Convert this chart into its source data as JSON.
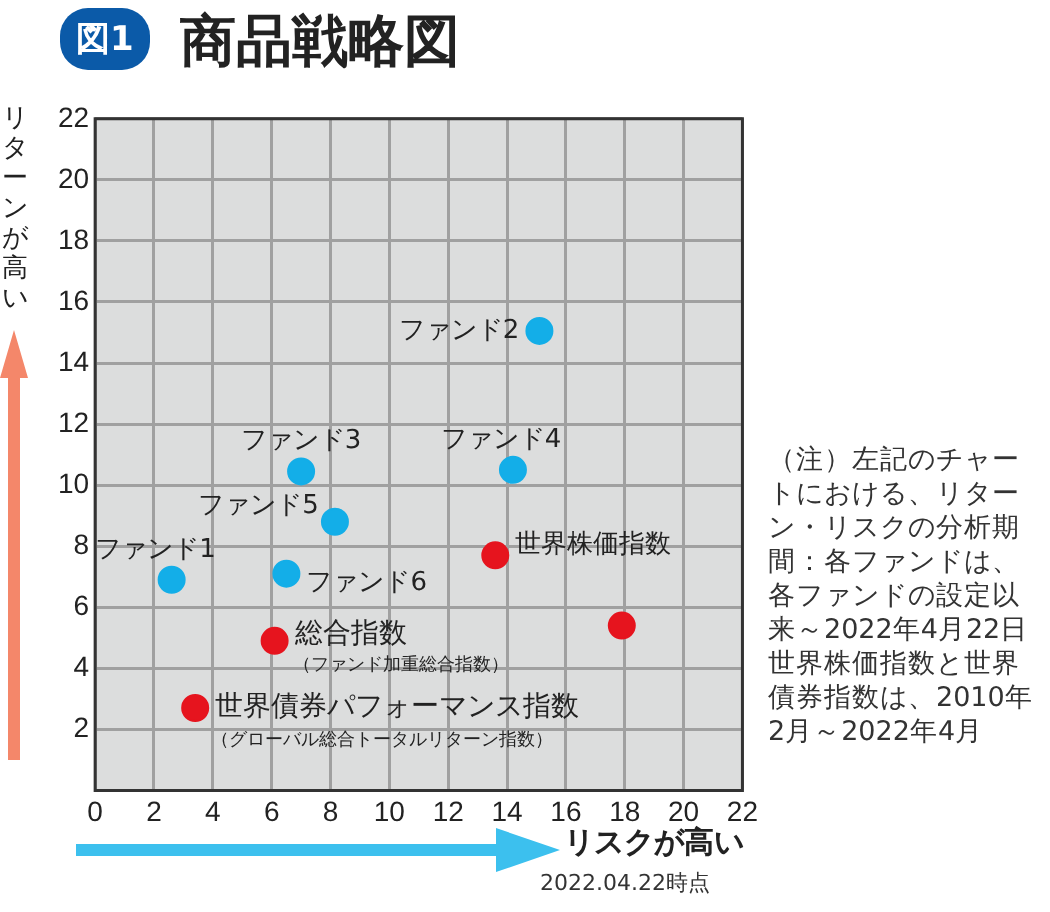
{
  "chart_data": {
    "type": "scatter",
    "title": "商品戦略図",
    "xlabel": "リスクが高い",
    "ylabel": "リターンが高い",
    "series": [
      {
        "color": "#13aee8",
        "x": [
          2.6,
          15.1,
          7.0,
          14.2,
          8.15,
          6.5
        ],
        "values": [
          6.9,
          15.05,
          10.45,
          10.5,
          8.8,
          7.1
        ]
      },
      {
        "color": "#e6141e",
        "x": [
          13.6,
          17.9,
          6.1,
          3.4
        ],
        "values": [
          7.7,
          5.4,
          4.9,
          2.7
        ]
      }
    ],
    "xlim": [
      0,
      22
    ],
    "xticks": [
      0,
      2,
      4,
      6,
      8,
      10,
      12,
      14,
      16,
      18,
      20,
      22
    ],
    "ylim": [
      0,
      22
    ],
    "yticks": [
      {
        "value": 0,
        "label": null
      },
      2,
      4,
      6,
      8,
      10,
      12,
      14,
      16,
      18,
      20,
      22
    ],
    "grid": true,
    "legend": false,
    "marker": "circle",
    "annotations": [
      {
        "text": "ファンド1",
        "x": 2.6,
        "y": 6.9
      },
      {
        "text": "ファンド2",
        "x": 15.1,
        "y": 15.05
      },
      {
        "text": "ファンド3",
        "x": 7.0,
        "y": 10.45
      },
      {
        "text": "ファンド4",
        "x": 14.2,
        "y": 10.5
      },
      {
        "text": "ファンド5",
        "x": 8.15,
        "y": 8.8
      },
      {
        "text": "ファンド6",
        "x": 6.5,
        "y": 7.1
      },
      {
        "text": "世界株価指数",
        "x": 13.6,
        "y": 7.7
      },
      {
        "text": "総合指数",
        "x": 6.1,
        "y": 4.9
      },
      {
        "text": "（ファンド加重総合指数）",
        "x": 6.1,
        "y": 4.9
      },
      {
        "text": "世界債券パフォーマンス指数",
        "x": 3.4,
        "y": 2.7
      },
      {
        "text": "（グローバル総合トータルリターン指数）",
        "x": 3.4,
        "y": 2.7
      },
      "図1",
      "（注）左記のチャートにおける、リターン・リスクの分析期間：各ファンドは、各ファンドの設定以来～2022年4月22日",
      "世界株価指数と世界債券指数は、2010年2月～2022年4月",
      "2022.04.22時点"
    ]
  }
}
